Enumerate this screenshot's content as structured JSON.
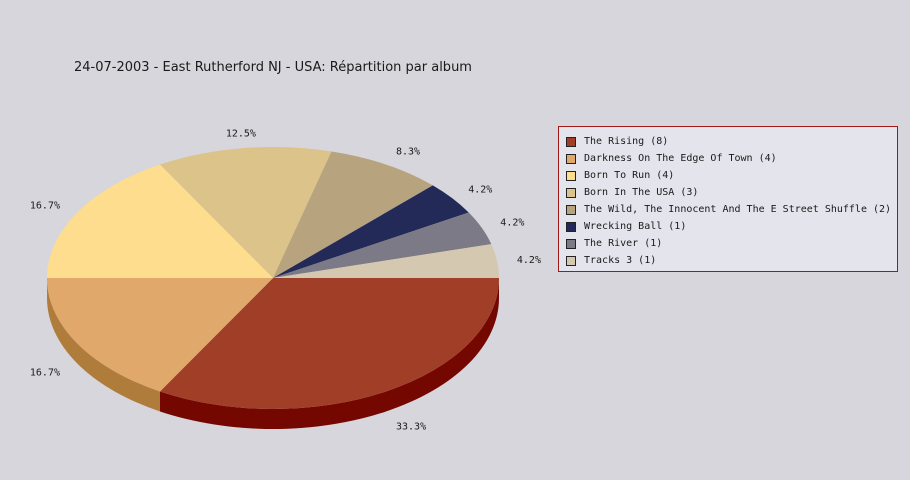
{
  "chart_data": {
    "type": "pie",
    "title": "24-07-2003 - East Rutherford NJ - USA:  Répartition par album",
    "slices": [
      {
        "label": "The Rising",
        "count": 8,
        "value": 33.3,
        "label_text": "33.3%",
        "legend": "The Rising (8)",
        "color": "#a03e28",
        "side_color": "#740800"
      },
      {
        "label": "Darkness On The Edge Of Town",
        "count": 4,
        "value": 16.7,
        "label_text": "16.7%",
        "legend": "Darkness On The Edge Of Town (4)",
        "color": "#e0a86a",
        "side_color": "#b07c3c"
      },
      {
        "label": "Born To Run",
        "count": 4,
        "value": 16.7,
        "label_text": "16.7%",
        "legend": "Born To Run (4)",
        "color": "#fedd8e",
        "side_color": "#c8ac60"
      },
      {
        "label": "Born In The USA",
        "count": 3,
        "value": 12.5,
        "label_text": "12.5%",
        "legend": "Born In The USA (3)",
        "color": "#dcc38a",
        "side_color": "#a89260"
      },
      {
        "label": "The Wild, The Innocent And The E Street Shuffle",
        "count": 2,
        "value": 8.3,
        "label_text": "8.3%",
        "legend": "The Wild, The Innocent And The E Street Shuffle (2)",
        "color": "#b7a47e",
        "side_color": "#8a7a58"
      },
      {
        "label": "Wrecking Ball",
        "count": 1,
        "value": 4.2,
        "label_text": "4.2%",
        "legend": "Wrecking Ball (1)",
        "color": "#232a58",
        "side_color": "#12163a"
      },
      {
        "label": "The River",
        "count": 1,
        "value": 4.2,
        "label_text": "4.2%",
        "legend": "The River (1)",
        "color": "#7b7a86",
        "side_color": "#55545e"
      },
      {
        "label": "Tracks 3",
        "count": 1,
        "value": 4.2,
        "label_text": "4.2%",
        "legend": "Tracks 3 (1)",
        "color": "#d5c8b0",
        "side_color": "#a89c84"
      }
    ],
    "legend_position": "right",
    "style": "3d",
    "legend_border_color": "#a01818"
  }
}
